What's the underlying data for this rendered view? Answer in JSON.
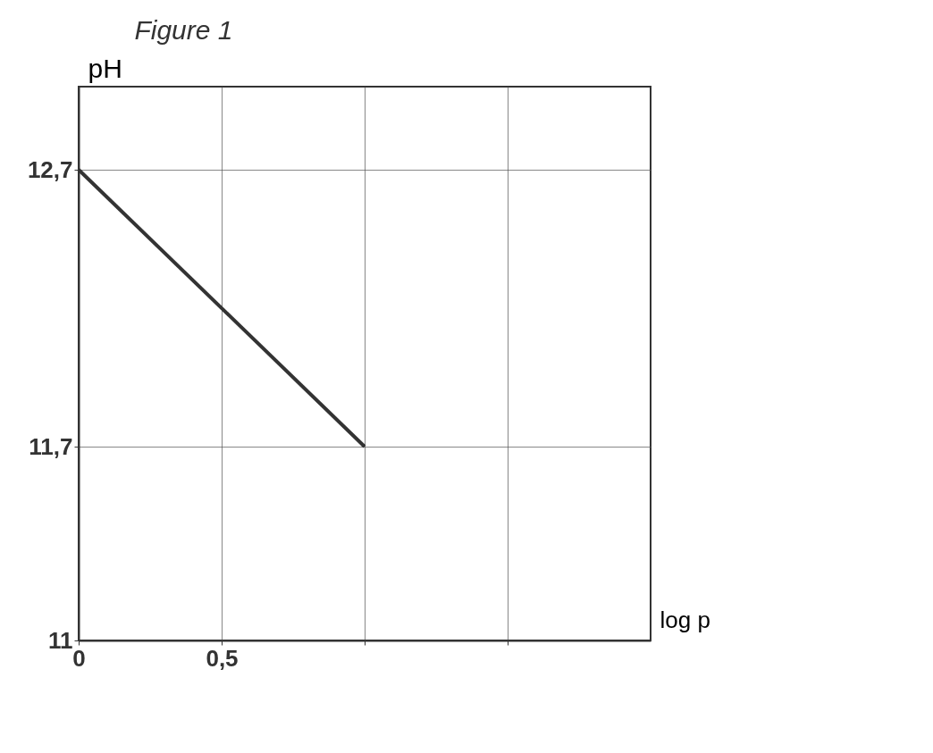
{
  "chart_data": {
    "type": "line",
    "title": "Figure 1",
    "xlabel": "log p",
    "ylabel": "pH",
    "x": [
      0,
      1
    ],
    "series": [
      {
        "color": "#333333",
        "values": [
          12.7,
          11.7
        ]
      }
    ],
    "xlim": [
      0,
      2
    ],
    "ylim": [
      11,
      13
    ],
    "xticks": [
      0,
      {
        "value": 0.5,
        "label": "0,5"
      },
      {
        "value": 1,
        "label": null
      },
      {
        "value": 1.5,
        "label": null
      }
    ],
    "yticks": [
      11,
      {
        "value": 11.7,
        "label": "11,7"
      },
      {
        "value": 12.7,
        "label": "12,7"
      }
    ],
    "grid": true,
    "marker": "none",
    "line_style": "solid"
  }
}
